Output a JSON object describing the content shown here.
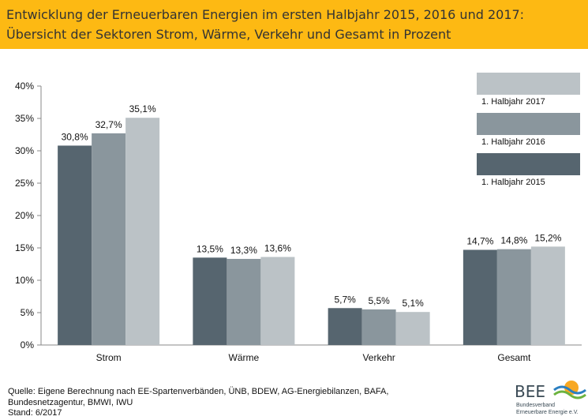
{
  "header": {
    "title_line1": "Entwicklung der Erneuerbaren Energien im ersten Halbjahr 2015, 2016 und 2017:",
    "title_line2": "Übersicht der Sektoren Strom, Wärme, Verkehr und Gesamt in Prozent",
    "bg_color": "#FDB913"
  },
  "chart_data": {
    "type": "bar",
    "categories": [
      "Strom",
      "Wärme",
      "Verkehr",
      "Gesamt"
    ],
    "series": [
      {
        "name": "1. Halbjahr 2015",
        "values": [
          30.8,
          13.5,
          5.7,
          14.7
        ],
        "labels": [
          "30,8%",
          "13,5%",
          "5,7%",
          "14,7%"
        ],
        "color": "#56656F"
      },
      {
        "name": "1. Halbjahr 2016",
        "values": [
          32.7,
          13.3,
          5.5,
          14.8
        ],
        "labels": [
          "32,7%",
          "13,3%",
          "5,5%",
          "14,8%"
        ],
        "color": "#8A969D"
      },
      {
        "name": "1. Halbjahr 2017",
        "values": [
          35.1,
          13.6,
          5.1,
          15.2
        ],
        "labels": [
          "35,1%",
          "13,6%",
          "5,1%",
          "15,2%"
        ],
        "color": "#BBC2C6"
      }
    ],
    "y_ticks": [
      {
        "value": 0,
        "label": "0%"
      },
      {
        "value": 5,
        "label": "5%"
      },
      {
        "value": 10,
        "label": "10%"
      },
      {
        "value": 15,
        "label": "15%"
      },
      {
        "value": 20,
        "label": "20%"
      },
      {
        "value": 25,
        "label": "25%"
      },
      {
        "value": 30,
        "label": "30%"
      },
      {
        "value": 35,
        "label": "35%"
      },
      {
        "value": 40,
        "label": "40%"
      }
    ],
    "ylim": [
      0,
      40
    ],
    "grid": false,
    "legend_position": "top-right"
  },
  "footer": {
    "source_line1": "Quelle: Eigene Berechnung nach EE-Spartenverbänden, ÜNB, BDEW, AG-Energiebilanzen, BAFA,",
    "source_line2": "Bundesnetzagentur, BMWI, IWU",
    "stand": "Stand: 6/2017"
  },
  "logo": {
    "name": "BEE",
    "sub1": "Bundesverband",
    "sub2": "Erneuerbare Energie e.V."
  }
}
